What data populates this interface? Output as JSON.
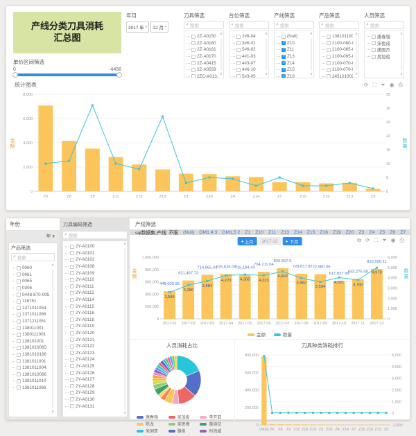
{
  "icons": {
    "search": "⌕",
    "chevron_down": "▾",
    "scroll_up": "∧",
    "scroll_down": "∨",
    "refresh": "⟳",
    "fullscreen": "⛶",
    "filter": "⏷",
    "settings": "◉",
    "export": "⎙",
    "link": "⧉",
    "prev": "◂",
    "next": "▸"
  },
  "top_panel": {
    "title_line1": "产线分类刀具消耗",
    "title_line2": "汇总图",
    "price_filter": {
      "label": "单价区间筛选",
      "min": "0",
      "max": "4456"
    },
    "year_month": {
      "label": "年月",
      "year": "2017 年",
      "month": "12 月"
    },
    "search_placeholder": "搜索",
    "filters": [
      {
        "label": "刀具筛选",
        "items": [
          {
            "label": "2Z-A0150",
            "checked": false
          },
          {
            "label": "2Z-A0160",
            "checked": false
          },
          {
            "label": "2Z-A0161",
            "checked": false
          },
          {
            "label": "2Z-A0170",
            "checked": false
          },
          {
            "label": "2Z-A0415",
            "checked": false
          },
          {
            "label": "2Z-A0559",
            "checked": false
          },
          {
            "label": "2ZC-A0131-01",
            "checked": false
          }
        ]
      },
      {
        "label": "台位筛选",
        "items": [
          {
            "label": "2#6-04",
            "checked": false
          },
          {
            "label": "3#6-01",
            "checked": false
          },
          {
            "label": "5#6-02",
            "checked": false
          },
          {
            "label": "4#1-03",
            "checked": false
          },
          {
            "label": "4#3-07",
            "checked": false
          },
          {
            "label": "4#6-10",
            "checked": false
          },
          {
            "label": "5#3-05",
            "checked": false
          }
        ]
      },
      {
        "label": "产线筛选",
        "items": [
          {
            "label": "(Null)",
            "checked": false
          },
          {
            "label": "Z10",
            "checked": true
          },
          {
            "label": "Z11",
            "checked": true
          },
          {
            "label": "Z13",
            "checked": true
          },
          {
            "label": "Z14",
            "checked": true
          },
          {
            "label": "Z15",
            "checked": true
          },
          {
            "label": "Z16",
            "checked": true
          }
        ]
      },
      {
        "label": "产品筛选",
        "items": [
          {
            "label": "1381011001",
            "checked": false
          },
          {
            "label": "2100-060-0124",
            "checked": false
          },
          {
            "label": "2100-065-0324",
            "checked": false
          },
          {
            "label": "2100-065-0325",
            "checked": false
          },
          {
            "label": "2100-070-0331",
            "checked": false
          },
          {
            "label": "2100-070-0347",
            "checked": false
          },
          {
            "label": "2451010020",
            "checked": false
          }
        ]
      },
      {
        "label": "人员筛选",
        "items": [
          {
            "label": "唐春强",
            "checked": false
          },
          {
            "label": "宋俊成",
            "checked": false
          },
          {
            "label": "唐国杰",
            "checked": false
          },
          {
            "label": "吴加俊",
            "checked": false
          }
        ]
      }
    ]
  },
  "bottom_panel": {
    "year_sidebar": {
      "header": "年份",
      "dropdown": "年"
    },
    "product_filter": {
      "label": "产品筛选",
      "items": [
        "0060",
        "0061",
        "0065",
        "0306",
        "0448-870-0058",
        "116751",
        "1371011054",
        "1371011066",
        "1371211051",
        "138011001",
        "1380111001",
        "138101001",
        "1381010065",
        "1381010166",
        "1381011001",
        "1381011004",
        "1381010066",
        "1381011010",
        "1381011066"
      ]
    },
    "tool_code_filter": {
      "label": "刀具编码筛选",
      "items": [
        "2Y-A0100",
        "2Y-A0101",
        "2Y-A0102",
        "2Y-A0108",
        "2Y-A0109",
        "2Y-A0110",
        "2Y-A0111",
        "2Y-A0112",
        "2Y-A0114",
        "2Y-A0115",
        "2Y-A0116",
        "2Y-A0118",
        "2Y-A0119",
        "2Y-A0120",
        "2Y-A0121",
        "2Y-A0122",
        "2Y-A0123",
        "2Y-A0124",
        "2Y-A0125",
        "2Y-A0126",
        "2Y-A0127",
        "2Y-A0128",
        "2Y-A0129",
        "2Y-A0130",
        "2Y-A0131"
      ]
    },
    "line_filter": {
      "header": "产线筛选",
      "summary": "sql数据集,产线: 不限",
      "options": [
        "(Null)",
        "GM1.4 3",
        "GM1.5 2",
        "Z1",
        "Z10",
        "Z11",
        "Z13",
        "Z14",
        "Z15",
        "Z16",
        "Z19",
        "Z20",
        "Z3",
        "Z4",
        "Z5",
        "Z6",
        "Z7",
        "Z8",
        "Z9",
        "Z99",
        "Z992"
      ]
    },
    "month_nav": {
      "prev_label": "上月",
      "current": "2017-12",
      "next_label": "下月"
    }
  },
  "chart_data": [
    {
      "id": "top",
      "type": "bar-line",
      "title": "统计图表",
      "grid": "left",
      "categories": [
        "Z6",
        "Z8",
        "Z9",
        "Z11",
        "Z10",
        "Z19",
        "Z3",
        "Z20",
        "Z4",
        "Z14",
        "Z7",
        "Z15",
        "Z16",
        "Z13",
        "Z5"
      ],
      "series": [
        {
          "name": "金额",
          "type": "bar",
          "values": [
            7070,
            4160,
            3520,
            2830,
            2210,
            1800,
            1450,
            1420,
            1240,
            1190,
            760,
            745,
            655,
            700,
            210
          ]
        },
        {
          "name": "数量",
          "type": "line",
          "values": [
            10,
            11,
            31,
            10,
            8,
            27,
            3,
            5,
            4.5,
            2,
            5,
            2,
            2,
            3,
            1
          ]
        }
      ],
      "left_axis": {
        "label": "金额",
        "min": 0,
        "max": 8000,
        "ticks": [
          0,
          2000,
          4000,
          6000,
          8000
        ],
        "tick_labels": [
          "0",
          "2,000",
          "4,000",
          "6,000",
          "8,000"
        ]
      },
      "right_axis": {
        "label": "数量",
        "min": 0,
        "max": 35,
        "ticks": [
          0,
          5,
          10,
          15,
          20,
          25,
          30,
          35
        ],
        "tick_labels": [
          "0",
          "5",
          "10",
          "15",
          "20",
          "25",
          "30",
          "35"
        ]
      },
      "bar_color": "#fbc55b",
      "line_color": "#3ec3d6"
    },
    {
      "id": "monthly",
      "type": "bar-line",
      "title": "",
      "grid": "left",
      "categories": [
        "2017-01",
        "2017-02",
        "2017-03",
        "2017-04",
        "2017-05",
        "2017-06",
        "2017-07",
        "2017-08",
        "2017-09",
        "2017-10",
        "2017-11",
        "2017-12"
      ],
      "series": [
        {
          "name": "金额",
          "type": "bar",
          "values": [
            448029.96,
            621487.73,
            714665.04,
            725626.09,
            716194.44,
            764211.04,
            820507.5,
            729817.8,
            722980.06,
            617837.99,
            643275.49,
            810590.11
          ],
          "labels": [
            "448,029.96",
            "621,487.73",
            "714,665.04",
            "725,626.09",
            "716,194.44",
            "764,211.04",
            "820,507.5",
            "729,817.8",
            "722,980.06",
            "617,837.99",
            "643,275.49",
            "810,590.11"
          ]
        },
        {
          "name": "数量",
          "type": "line",
          "values": [
            2584,
            3286,
            3684,
            4223,
            4306,
            4223,
            4603,
            3962,
            3594,
            4021,
            3790,
            4979
          ],
          "labels": [
            "2,584",
            "3,286",
            "3,684",
            "4,223",
            "4,306",
            "4,223",
            "4,603",
            "3,962",
            "3,594",
            "4,021",
            "3,790",
            "4,979"
          ]
        }
      ],
      "left_axis": {
        "label": "金额",
        "min": 0,
        "max": 1000000,
        "ticks": [
          0,
          200000,
          400000,
          600000,
          800000,
          1000000
        ],
        "tick_labels": [
          "0",
          "200,000",
          "400,000",
          "600,000",
          "800,000",
          "1,000,000"
        ]
      },
      "right_axis": {
        "label": "数量",
        "min": 0,
        "max": 6000,
        "ticks": [
          0,
          1000,
          2000,
          3000,
          4000,
          5000,
          6000
        ],
        "tick_labels": [
          "0",
          "1,000",
          "2,000",
          "3,000",
          "4,000",
          "5,000",
          "6,000"
        ]
      },
      "legend": [
        {
          "label": "金额",
          "color": "#fbc55b"
        },
        {
          "label": "数量",
          "color": "#3ec3d6"
        }
      ],
      "bar_color": "#fbc55b",
      "line_color": "#3ec3d6"
    },
    {
      "id": "pie",
      "type": "donut",
      "title": "人员消耗占比",
      "slices": [
        {
          "value": 17,
          "color": "#26c6da"
        },
        {
          "value": 16,
          "color": "#5470c6"
        },
        {
          "value": 11,
          "color": "#ee6666"
        },
        {
          "value": 4,
          "color": "#f8a8c3"
        },
        {
          "value": 5,
          "color": "#fac858"
        },
        {
          "value": 3,
          "color": "#fc8452"
        },
        {
          "value": 2,
          "color": "#ffd666"
        },
        {
          "value": 4,
          "color": "#3ba272"
        },
        {
          "value": 3,
          "color": "#91cc75"
        },
        {
          "value": 2,
          "color": "#c0e15c"
        },
        {
          "value": 2,
          "color": "#f6c022"
        },
        {
          "value": 2,
          "color": "#ff9f43"
        },
        {
          "value": 1.5,
          "color": "#ea7ccc"
        },
        {
          "value": 2,
          "color": "#9a60b4"
        },
        {
          "value": 1.5,
          "color": "#5b8ff9"
        },
        {
          "value": 2,
          "color": "#36cfc9"
        },
        {
          "value": 1.5,
          "color": "#ef5350"
        },
        {
          "value": 2,
          "color": "#7e57c2"
        },
        {
          "value": 1.5,
          "color": "#29b6f6"
        },
        {
          "value": 1.5,
          "color": "#66bb6a"
        },
        {
          "value": 1.5,
          "color": "#f759ab"
        },
        {
          "value": 1.5,
          "color": "#40a9ff"
        },
        {
          "value": 1.5,
          "color": "#73d13d"
        },
        {
          "value": 1.5,
          "color": "#ffc53d"
        }
      ],
      "legend": [
        {
          "label": "唐春强",
          "color": "#5470c6"
        },
        {
          "label": "吴加俊",
          "color": "#ee6666"
        },
        {
          "label": "李开亚",
          "color": "#f8a8c3"
        },
        {
          "label": "陈龙",
          "color": "#fac858"
        },
        {
          "label": "吴思梅",
          "color": "#91cc75"
        },
        {
          "label": "黄迪征",
          "color": "#3ba272"
        },
        {
          "label": "米国亚",
          "color": "#26c6da"
        },
        {
          "label": "路俊",
          "color": "#5c6bc0"
        },
        {
          "label": "时海威",
          "color": "#9a60b4"
        }
      ]
    },
    {
      "id": "rank",
      "type": "bar-line",
      "title": "刀具种类消耗排行",
      "grid": "right",
      "categories": [
        "(Null)",
        "Z6",
        "Z8",
        "Z9",
        "Z11",
        "Z10",
        "Z19",
        "Z3",
        "Z20",
        "Z4",
        "Z14",
        "Z7",
        "Z15",
        "Z16",
        "Z13",
        "Z5"
      ],
      "series": [
        {
          "name": "金额",
          "type": "bar",
          "values": [
            780000,
            9000,
            7500,
            6500,
            6000,
            5500,
            5000,
            4500,
            4200,
            4000,
            3800,
            3500,
            3200,
            3000,
            2800,
            2500
          ]
        },
        {
          "name": "数量",
          "type": "line",
          "values": [
            4900,
            40,
            40,
            45,
            42,
            40,
            44,
            38,
            40,
            36,
            42,
            38,
            36,
            38,
            40,
            35
          ]
        }
      ],
      "left_axis": {
        "label": "金额",
        "min": 0,
        "max": 800000,
        "ticks": [
          0,
          200000,
          400000,
          600000,
          800000
        ],
        "tick_labels": [
          "0",
          "200,000",
          "400,000",
          "600,000",
          "800,000"
        ]
      },
      "right_axis": {
        "label": "数量",
        "min": -1000,
        "max": 5000,
        "ticks": [
          -1000,
          0,
          1000,
          2000,
          3000,
          4000,
          5000
        ],
        "tick_labels": [
          "-1,000",
          "0",
          "1,000",
          "2,000",
          "3,000",
          "4,000",
          "5,000"
        ]
      },
      "bar_color": "#fbc55b",
      "line_color": "#3ec3d6"
    }
  ]
}
